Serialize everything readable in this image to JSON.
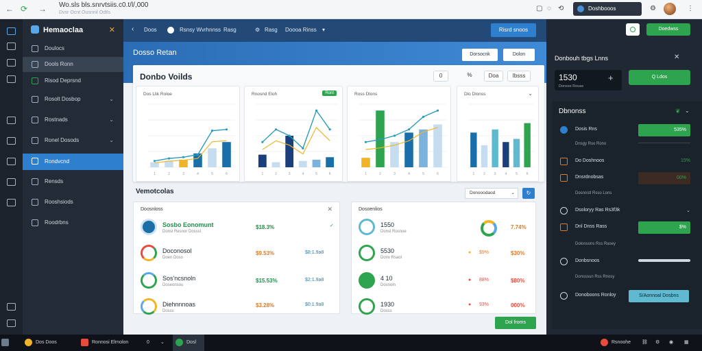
{
  "browser": {
    "url": "Wo.sls bls.snrvtsiis.c0.t/l/,000",
    "url_sub": "Dvsr Ocnt Ousnnil Odtls",
    "tab_title": "Doshbooos"
  },
  "sidebar": {
    "brand": "Hemaoclaa",
    "items": [
      {
        "label": "Doulocs",
        "chevron": ""
      },
      {
        "label": "Dools Ronn",
        "chevron": ""
      },
      {
        "label": "Risod Deprsnd",
        "chevron": ""
      },
      {
        "label": "Rosolt Dosbop",
        "chevron": "⌄"
      },
      {
        "label": "Rostnads",
        "chevron": "⌄"
      },
      {
        "label": "Ronel Dosods",
        "chevron": "⌄"
      },
      {
        "label": "Rondvcnd",
        "chevron": ""
      },
      {
        "label": "Rensds",
        "chevron": ""
      },
      {
        "label": "Rooshsiods",
        "chevron": ""
      },
      {
        "label": "Roodrbns",
        "chevron": ""
      }
    ]
  },
  "topbar": {
    "back": "Doos",
    "crumb1": "Rsnsy Wvrhnnss",
    "crumb2": "Rasg",
    "crumb3": "Rasg",
    "crumb4": "Doooa Rinss",
    "action_button": "Risrd snoos"
  },
  "hero": {
    "title": "Dosso Retan",
    "btn1": "Dorsocnk",
    "btn2": "Dolon"
  },
  "panel": {
    "title": "Donbo Voilds",
    "pill1": "0",
    "pill2": "%",
    "pill3": "Doa",
    "pill4": "Ibsss"
  },
  "chart_data": [
    {
      "type": "bar",
      "title": "Dos Llik Roloe",
      "categories": [
        "1",
        "2",
        "3",
        "4",
        "5",
        "6"
      ],
      "values": [
        8,
        10,
        12,
        22,
        30,
        40
      ],
      "line": [
        10,
        14,
        16,
        20,
        58,
        60
      ]
    },
    {
      "type": "bar",
      "title": "Rnosnd Eloh",
      "badge": "Ront",
      "categories": [
        "1",
        "2",
        "3",
        "4",
        "5",
        "6"
      ],
      "values": [
        20,
        8,
        50,
        10,
        12,
        16
      ],
      "line": [
        40,
        60,
        50,
        30,
        90,
        60
      ]
    },
    {
      "type": "bar",
      "title": "Ross Dlons",
      "categories": [
        "1",
        "2",
        "3",
        "4",
        "5",
        "6"
      ],
      "values": [
        15,
        90,
        40,
        55,
        60,
        68
      ],
      "line": [
        40,
        44,
        50,
        60,
        80,
        90
      ]
    },
    {
      "type": "bar",
      "title": "Dlo Dlonss",
      "categories": [
        "1",
        "2",
        "3",
        "4",
        "5",
        "6"
      ],
      "values": [
        55,
        35,
        60,
        40,
        45,
        70
      ]
    }
  ],
  "section2": {
    "title": "Vemotcolas",
    "filter": "Donooodaod",
    "filter_btn": "↻"
  },
  "card1": {
    "header": "Doosnloss",
    "rows": [
      {
        "title": "Sosbo Eonomunt",
        "sub": "Donsl Resnor Dosssl",
        "value": "$18.3%",
        "change": "",
        "green": true
      },
      {
        "title": "Doconosol",
        "sub": "Doen Doso",
        "value": "$9.53%",
        "change": "$8:1.9a8",
        "green": false
      },
      {
        "title": "Sos'ncsnoln",
        "sub": "Doseonsou",
        "value": "$15.53%",
        "change": "$2:1.9a8",
        "green": false
      },
      {
        "title": "Diehnnnoas",
        "sub": "Dosss",
        "value": "$3.28%",
        "change": "$0:1.9a8",
        "green": false
      }
    ]
  },
  "card2": {
    "header": "Dosoenlios",
    "rows": [
      {
        "title": "1550",
        "sub": "Donsl Rosnoe",
        "value": "7.74%",
        "change": ""
      },
      {
        "title": "5530",
        "sub": "Donv Rsaol",
        "value": "$30%",
        "change": "$9%"
      },
      {
        "title": "4 10",
        "sub": "Dosnoln",
        "value": "$80%",
        "change": "88%"
      },
      {
        "title": "1930",
        "sub": "Dosss",
        "value": "000%",
        "change": "93%"
      }
    ],
    "button": "Dol froms"
  },
  "right": {
    "btn": "Doedwss",
    "header": "Donbouh tbgs Lnns",
    "value": "1530",
    "value_sub": "Donsse Rouas",
    "green_btn": "Q Ldos",
    "list_title": "Dbnonss",
    "items": [
      {
        "label": "Dosis Rns",
        "bar": "535%",
        "text": "",
        "color": "#2ea44f",
        "bar_text": true
      },
      {
        "label": "Dnsgy Rso Rono",
        "bar": "",
        "text": "",
        "color": "",
        "bar_text": false
      },
      {
        "label": "Do Doshnoos",
        "bar": "",
        "text": "15%",
        "color": "#2ea44f",
        "bar_text": false
      },
      {
        "label": "Dnsrdnobsas",
        "bar": "00%",
        "text": "",
        "color": "#3b2b22",
        "bar_text": true
      },
      {
        "label": "Dosnnstl Rsso Lons",
        "bar": "",
        "text": "",
        "color": "",
        "bar_text": false
      },
      {
        "label": "Dsoloryy Ras Rs3f3k",
        "bar": "",
        "text": "⌄",
        "color": "",
        "bar_text": false
      },
      {
        "label": "Dnl Dnss Rass",
        "bar": "$%",
        "text": "",
        "color": "#2ea44f",
        "bar_text": true
      },
      {
        "label": "Dolonsons Rss Rasey",
        "bar": "",
        "text": "",
        "color": "",
        "bar_text": false
      },
      {
        "label": "Donbsnoos",
        "bar": "",
        "text": "",
        "color": "#cfd7e0",
        "bar_text": false
      },
      {
        "label": "Donsssun Rss Rnosy",
        "bar": "",
        "text": "",
        "color": "",
        "bar_text": false
      },
      {
        "label": "Donoboons Ronloy",
        "bar": "S/Aonnoal Dosbns",
        "text": "",
        "color": "#5fb9cf",
        "bar_text": true
      }
    ]
  },
  "taskbar": {
    "items": [
      "Dos Doos",
      "Ronnosi Elrnolon",
      "0",
      "Dosl"
    ],
    "tray": "Rsnoohe"
  }
}
